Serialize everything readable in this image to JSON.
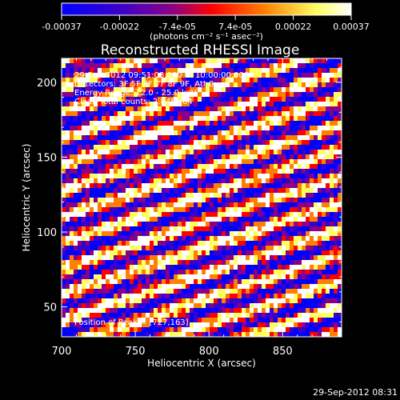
{
  "chart_data": {
    "type": "heatmap",
    "title": "Reconstructed RHESSI Image",
    "xlabel": "Heliocentric X (arcsec)",
    "ylabel": "Heliocentric Y (arcsec)",
    "xlim": [
      700,
      890
    ],
    "ylim": [
      30,
      216
    ],
    "x_ticks": [
      700,
      750,
      800,
      850
    ],
    "y_ticks": [
      50,
      100,
      150,
      200
    ],
    "colorbar": {
      "ticks": [
        "-0.00037",
        "-0.00022",
        "-7.4e-05",
        "7.4e-05",
        "0.00022",
        "0.00037"
      ],
      "unit_label": "(photons cm⁻² s⁻¹ asec⁻²)",
      "colors": [
        "#0000ff",
        "#3a00cc",
        "#8a0088",
        "#ff0000",
        "#ff8000",
        "#ffff60",
        "#ffffff"
      ]
    },
    "annotations": [
      "29-Sep-2012 09:51:08.000 to 10:00:00.000",
      "Detectors: 3F 5F 6F 7F 8F 9F, Att 0",
      "Energy Range: 12.0 - 25.0 keV",
      "Clean     Total counts: 2.84E+04"
    ],
    "peak_label": "Position of Peak = [727,163]",
    "peak_position": [
      727,
      163
    ]
  },
  "timestamp": "29-Sep-2012 08:31"
}
